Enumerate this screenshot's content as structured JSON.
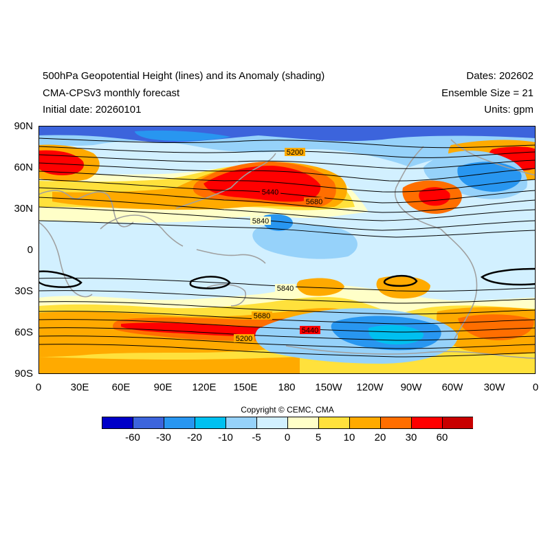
{
  "header": {
    "title": "500hPa Geopotential Height (lines) and its Anomaly (shading)",
    "model": "CMA-CPSv3 monthly forecast",
    "initial_date": "Initial date: 20260101",
    "dates": "Dates: 202602",
    "ensemble": "Ensemble Size = 21",
    "units": "Units: gpm"
  },
  "lat_ticks": [
    "90N",
    "60N",
    "30N",
    "0",
    "30S",
    "60S",
    "90S"
  ],
  "lon_ticks": [
    "0",
    "30E",
    "60E",
    "90E",
    "120E",
    "150E",
    "180",
    "150W",
    "120W",
    "90W",
    "60W",
    "30W",
    "0"
  ],
  "contour_labels": [
    "5200",
    "5440",
    "5680",
    "5840",
    "5840",
    "5680",
    "5440",
    "5200"
  ],
  "copyright": "Copyright © CEMC, CMA",
  "colorbar": {
    "labels": [
      "-60",
      "-30",
      "-20",
      "-10",
      "-5",
      "0",
      "5",
      "10",
      "20",
      "30",
      "60"
    ],
    "colors": [
      "#0000c8",
      "#3c64dc",
      "#2896f0",
      "#00c0f0",
      "#96d2fa",
      "#d2f0ff",
      "#ffffc8",
      "#ffe13c",
      "#ffaa00",
      "#ff6e00",
      "#ff0000",
      "#c80000"
    ]
  }
}
